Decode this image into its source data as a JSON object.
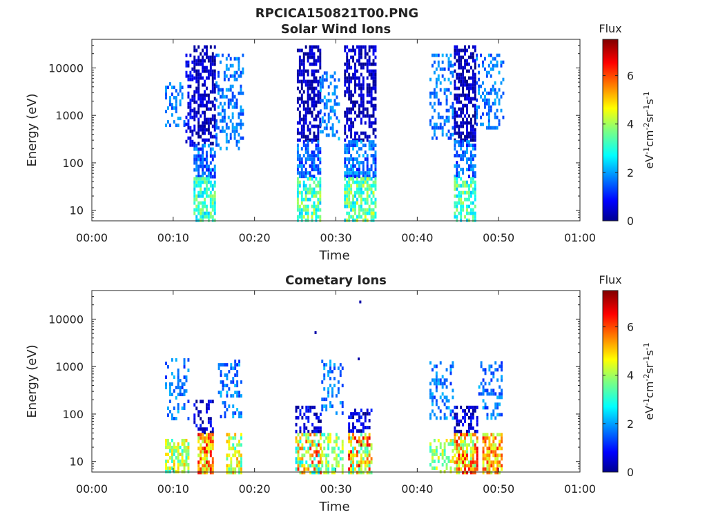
{
  "figure_title": "RPCICA150821T00.PNG",
  "chart_data": [
    {
      "type": "heatmap",
      "title": "Solar Wind Ions",
      "xlabel": "Time",
      "ylabel": "Energy (eV)",
      "xlim": [
        "00:00",
        "01:00"
      ],
      "ylim": [
        6,
        40000
      ],
      "yscale": "log",
      "xticks": [
        "00:00",
        "00:10",
        "00:20",
        "00:30",
        "00:40",
        "00:50",
        "01:00"
      ],
      "yticks": [
        10,
        100,
        1000,
        10000
      ],
      "ytick_labels": [
        "10",
        "100",
        "1000",
        "10000"
      ],
      "colorbar": {
        "title": "Flux",
        "label_base": "eV",
        "label_exps": [
          "-1",
          "-2",
          "-1",
          "-1"
        ],
        "label_units": [
          "cm",
          "sr",
          "s"
        ],
        "range": [
          0,
          7.5
        ],
        "ticks": [
          0,
          2,
          4,
          6
        ],
        "colormap": "jet"
      },
      "blocks": [
        {
          "t_start": 9.0,
          "t_end": 11.5,
          "e_min": 600,
          "e_max": 5000,
          "flux_range": [
            1.3,
            2.3
          ],
          "density": 0.35
        },
        {
          "t_start": 11.5,
          "t_end": 12.5,
          "e_min": 250,
          "e_max": 20000,
          "flux_range": [
            0.3,
            1.2
          ],
          "density": 0.4
        },
        {
          "t_start": 12.5,
          "t_end": 15.2,
          "e_min": 250,
          "e_max": 30000,
          "flux_range": [
            0.0,
            0.9
          ],
          "density": 0.6
        },
        {
          "t_start": 12.5,
          "t_end": 15.2,
          "e_min": 50,
          "e_max": 250,
          "flux_range": [
            1.0,
            2.3
          ],
          "density": 0.6
        },
        {
          "t_start": 12.5,
          "t_end": 15.2,
          "e_min": 6,
          "e_max": 50,
          "flux_range": [
            2.3,
            4.2
          ],
          "density": 0.65
        },
        {
          "t_start": 15.2,
          "t_end": 18.7,
          "e_min": 200,
          "e_max": 20000,
          "flux_range": [
            1.3,
            2.3
          ],
          "density": 0.35
        },
        {
          "t_start": 25.2,
          "t_end": 28.0,
          "e_min": 300,
          "e_max": 30000,
          "flux_range": [
            0.0,
            0.9
          ],
          "density": 0.6
        },
        {
          "t_start": 25.2,
          "t_end": 28.0,
          "e_min": 50,
          "e_max": 300,
          "flux_range": [
            1.0,
            2.3
          ],
          "density": 0.6
        },
        {
          "t_start": 25.2,
          "t_end": 28.0,
          "e_min": 6,
          "e_max": 50,
          "flux_range": [
            2.3,
            4.4
          ],
          "density": 0.7
        },
        {
          "t_start": 28.0,
          "t_end": 30.5,
          "e_min": 300,
          "e_max": 10000,
          "flux_range": [
            1.4,
            2.4
          ],
          "density": 0.35
        },
        {
          "t_start": 31.0,
          "t_end": 34.8,
          "e_min": 300,
          "e_max": 30000,
          "flux_range": [
            0.0,
            0.9
          ],
          "density": 0.6
        },
        {
          "t_start": 31.0,
          "t_end": 34.8,
          "e_min": 50,
          "e_max": 300,
          "flux_range": [
            1.0,
            2.4
          ],
          "density": 0.6
        },
        {
          "t_start": 31.0,
          "t_end": 34.8,
          "e_min": 6,
          "e_max": 50,
          "flux_range": [
            2.4,
            4.6
          ],
          "density": 0.7
        },
        {
          "t_start": 41.5,
          "t_end": 44.5,
          "e_min": 300,
          "e_max": 20000,
          "flux_range": [
            1.3,
            2.3
          ],
          "density": 0.35
        },
        {
          "t_start": 44.5,
          "t_end": 47.2,
          "e_min": 300,
          "e_max": 30000,
          "flux_range": [
            0.0,
            0.9
          ],
          "density": 0.6
        },
        {
          "t_start": 44.5,
          "t_end": 47.2,
          "e_min": 50,
          "e_max": 300,
          "flux_range": [
            1.0,
            2.3
          ],
          "density": 0.6
        },
        {
          "t_start": 44.5,
          "t_end": 47.2,
          "e_min": 6,
          "e_max": 50,
          "flux_range": [
            2.3,
            4.2
          ],
          "density": 0.65
        },
        {
          "t_start": 47.2,
          "t_end": 50.7,
          "e_min": 500,
          "e_max": 20000,
          "flux_range": [
            1.3,
            2.3
          ],
          "density": 0.3
        }
      ]
    },
    {
      "type": "heatmap",
      "title": "Cometary Ions",
      "xlabel": "Time",
      "ylabel": "Energy (eV)",
      "xlim": [
        "00:00",
        "01:00"
      ],
      "ylim": [
        6,
        40000
      ],
      "yscale": "log",
      "xticks": [
        "00:00",
        "00:10",
        "00:20",
        "00:30",
        "00:40",
        "00:50",
        "01:00"
      ],
      "yticks": [
        10,
        100,
        1000,
        10000
      ],
      "ytick_labels": [
        "10",
        "100",
        "1000",
        "10000"
      ],
      "colorbar": {
        "title": "Flux",
        "label_base": "eV",
        "label_exps": [
          "-1",
          "-2",
          "-1",
          "-1"
        ],
        "label_units": [
          "cm",
          "sr",
          "s"
        ],
        "range": [
          0,
          7.5
        ],
        "ticks": [
          0,
          2,
          4,
          6
        ],
        "colormap": "jet"
      },
      "blocks": [
        {
          "t_start": 9.0,
          "t_end": 12.0,
          "e_min": 80,
          "e_max": 1500,
          "flux_range": [
            1.2,
            2.4
          ],
          "density": 0.35
        },
        {
          "t_start": 9.0,
          "t_end": 12.0,
          "e_min": 6,
          "e_max": 30,
          "flux_range": [
            3.0,
            5.2
          ],
          "density": 0.7
        },
        {
          "t_start": 12.5,
          "t_end": 15.0,
          "e_min": 40,
          "e_max": 200,
          "flux_range": [
            0.0,
            1.2
          ],
          "density": 0.45
        },
        {
          "t_start": 13.0,
          "t_end": 15.0,
          "e_min": 6,
          "e_max": 40,
          "flux_range": [
            4.0,
            6.8
          ],
          "density": 0.75
        },
        {
          "t_start": 15.5,
          "t_end": 18.5,
          "e_min": 80,
          "e_max": 1400,
          "flux_range": [
            1.2,
            2.4
          ],
          "density": 0.35
        },
        {
          "t_start": 16.5,
          "t_end": 18.5,
          "e_min": 6,
          "e_max": 40,
          "flux_range": [
            3.0,
            5.5
          ],
          "density": 0.6
        },
        {
          "t_start": 25.0,
          "t_end": 28.2,
          "e_min": 40,
          "e_max": 150,
          "flux_range": [
            0.0,
            1.3
          ],
          "density": 0.5
        },
        {
          "t_start": 25.0,
          "t_end": 28.2,
          "e_min": 6,
          "e_max": 40,
          "flux_range": [
            2.5,
            6.5
          ],
          "density": 0.65
        },
        {
          "t_start": 28.2,
          "t_end": 30.8,
          "e_min": 100,
          "e_max": 1400,
          "flux_range": [
            1.3,
            2.4
          ],
          "density": 0.3
        },
        {
          "t_start": 28.2,
          "t_end": 30.8,
          "e_min": 6,
          "e_max": 40,
          "flux_range": [
            3.0,
            4.8
          ],
          "density": 0.45
        },
        {
          "t_start": 31.5,
          "t_end": 34.5,
          "e_min": 40,
          "e_max": 130,
          "flux_range": [
            0.0,
            1.3
          ],
          "density": 0.5
        },
        {
          "t_start": 31.5,
          "t_end": 34.5,
          "e_min": 6,
          "e_max": 40,
          "flux_range": [
            3.0,
            7.0
          ],
          "density": 0.7
        },
        {
          "t_start": 41.5,
          "t_end": 44.5,
          "e_min": 80,
          "e_max": 1300,
          "flux_range": [
            1.2,
            2.4
          ],
          "density": 0.3
        },
        {
          "t_start": 41.5,
          "t_end": 44.5,
          "e_min": 6,
          "e_max": 30,
          "flux_range": [
            3.0,
            5.0
          ],
          "density": 0.45
        },
        {
          "t_start": 44.5,
          "t_end": 47.5,
          "e_min": 40,
          "e_max": 150,
          "flux_range": [
            0.0,
            1.3
          ],
          "density": 0.45
        },
        {
          "t_start": 44.5,
          "t_end": 47.5,
          "e_min": 6,
          "e_max": 40,
          "flux_range": [
            3.5,
            6.8
          ],
          "density": 0.7
        },
        {
          "t_start": 47.5,
          "t_end": 50.5,
          "e_min": 80,
          "e_max": 1300,
          "flux_range": [
            1.2,
            2.4
          ],
          "density": 0.35
        },
        {
          "t_start": 48.0,
          "t_end": 50.5,
          "e_min": 6,
          "e_max": 40,
          "flux_range": [
            4.0,
            6.5
          ],
          "density": 0.7
        }
      ],
      "points": [
        {
          "t": 33.0,
          "e": 23000,
          "flux": 0.3
        },
        {
          "t": 27.5,
          "e": 5200,
          "flux": 0.3
        },
        {
          "t": 32.8,
          "e": 1450,
          "flux": 0.3
        }
      ]
    }
  ]
}
